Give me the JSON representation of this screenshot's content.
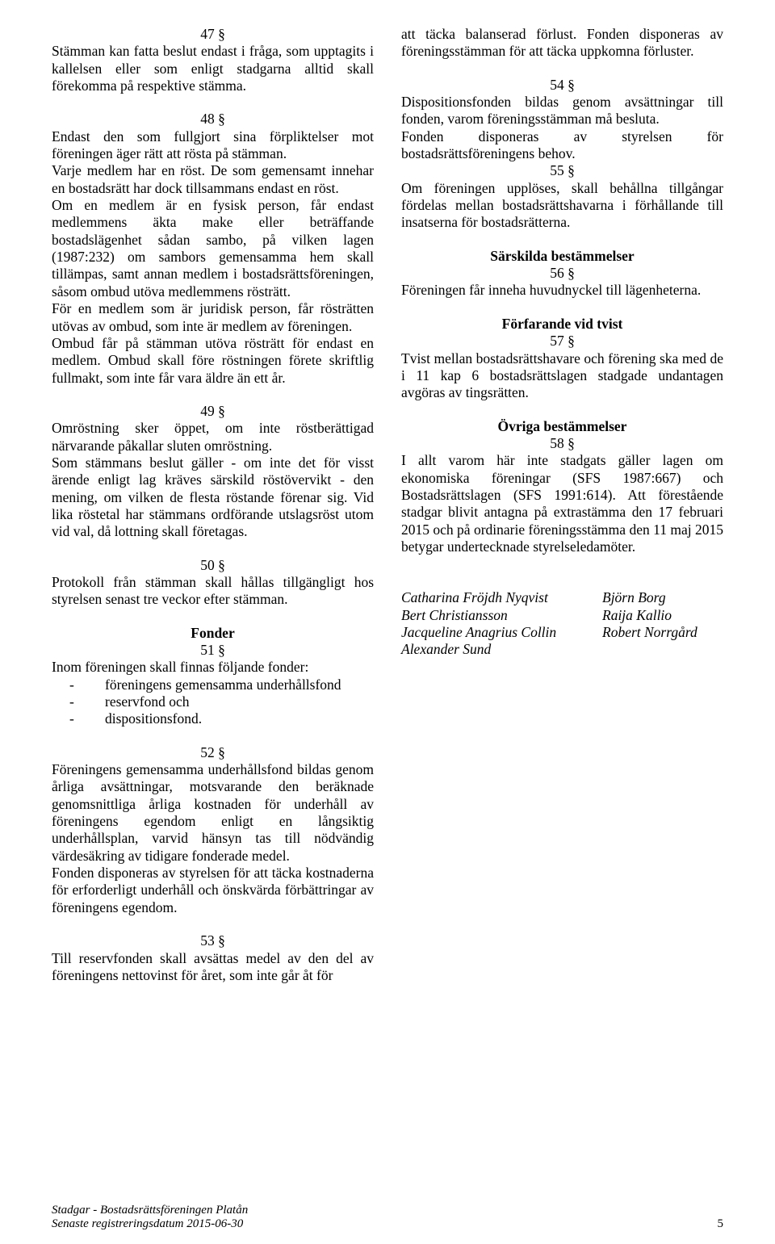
{
  "left": {
    "s47_num": "47 §",
    "s47_p": "Stämman kan fatta beslut endast i fråga, som upptagits i kallelsen eller som enligt stadgarna alltid skall förekomma på respektive stämma.",
    "s48_num": "48 §",
    "s48_p1": "Endast den som fullgjort sina förpliktelser mot föreningen äger rätt att rösta på stämman.",
    "s48_p2": "Varje medlem har en röst. De som gemensamt innehar en bostadsrätt har dock tillsammans endast en röst.",
    "s48_p3": "Om en medlem är en fysisk person, får endast medlemmens äkta make eller beträffande bostadslägenhet sådan sambo, på vilken lagen (1987:232) om sambors gemensamma hem skall tillämpas, samt annan medlem i bostadsrättsföreningen, såsom ombud utöva medlemmens rösträtt.",
    "s48_p4": "För en medlem som är juridisk person, får rösträtten utövas av ombud, som inte är medlem av föreningen.",
    "s48_p5": "Ombud får på stämman utöva rösträtt för endast en medlem. Ombud skall före röstningen förete skriftlig fullmakt, som inte får vara äldre än ett år.",
    "s49_num": "49 §",
    "s49_p1": "Omröstning sker öppet, om inte röstberättigad närvarande påkallar sluten omröstning.",
    "s49_p2": "Som stämmans beslut gäller - om inte det för visst ärende enligt lag kräves särskild röstövervikt - den mening, om vilken de flesta röstande förenar sig. Vid lika röstetal har stämmans ordförande utslagsröst utom vid val, då lottning skall företagas.",
    "s50_num": "50 §",
    "s50_p": "Protokoll från stämman skall hållas tillgängligt hos styrelsen senast tre veckor efter stämman.",
    "fonder_head": "Fonder",
    "s51_num": "51 §",
    "s51_p": "Inom föreningen skall finnas följande fonder:",
    "s51_b1": "föreningens gemensamma underhållsfond",
    "s51_b2": "reservfond och",
    "s51_b3": "dispositionsfond.",
    "s52_num": "52 §",
    "s52_p1": "Föreningens gemensamma underhållsfond bildas genom årliga avsättningar, motsvarande den beräknade genomsnittliga årliga kostnaden för underhåll av föreningens egendom enligt en långsiktig underhållsplan, varvid hänsyn tas till nödvändig värdesäkring av tidigare fonderade medel.",
    "s52_p2": "Fonden disponeras av styrelsen för att täcka kostnaderna för erforderligt underhåll och önskvärda förbättringar av föreningens egendom.",
    "s53_num": "53 §",
    "s53_p": "Till reservfonden skall avsättas medel av den del av föreningens nettovinst för året, som inte går åt för"
  },
  "right": {
    "s53_cont": "att täcka balanserad förlust. Fonden disponeras av föreningsstämman för att täcka uppkomna förluster.",
    "s54_num": "54 §",
    "s54_p1": "Dispositionsfonden bildas genom avsättningar till fonden, varom föreningsstämman må besluta.",
    "s54_p2": "Fonden disponeras av styrelsen för bostadsrättsföreningens behov.",
    "s55_num": "55 §",
    "s55_p": "Om föreningen upplöses, skall behållna tillgångar fördelas mellan bostadsrättshavarna i förhållande till insatserna för bostadsrätterna.",
    "sarskilda_head": "Särskilda bestämmelser",
    "s56_num": "56 §",
    "s56_p": "Föreningen får inneha huvudnyckel till lägenheterna.",
    "tvist_head": "Förfarande vid tvist",
    "s57_num": "57 §",
    "s57_p": "Tvist mellan bostadsrättshavare och förening ska med de i 11 kap 6 bostadsrättslagen stadgade undantagen avgöras av tingsrätten.",
    "ovriga_head": "Övriga bestämmelser",
    "s58_num": "58 §",
    "s58_p": "I allt varom här inte stadgats gäller lagen om ekonomiska föreningar (SFS 1987:667) och Bostadsrättslagen (SFS 1991:614). Att förestående stadgar blivit antagna på extrastämma den 17 februari 2015 och på ordinarie föreningsstämma den 11 maj 2015 betygar undertecknade styrelseledamöter.",
    "sig_l1": "Catharina Fröjdh Nyqvist",
    "sig_l2": "Bert Christiansson",
    "sig_l3": "Jacqueline Anagrius Collin",
    "sig_l4": "Alexander Sund",
    "sig_r1": "Björn Borg",
    "sig_r2": "Raija Kallio",
    "sig_r3": "Robert Norrgård"
  },
  "footer": {
    "line1": "Stadgar - Bostadsrättsföreningen Platån",
    "line2": "Senaste registreringsdatum 2015-06-30",
    "page": "5"
  }
}
